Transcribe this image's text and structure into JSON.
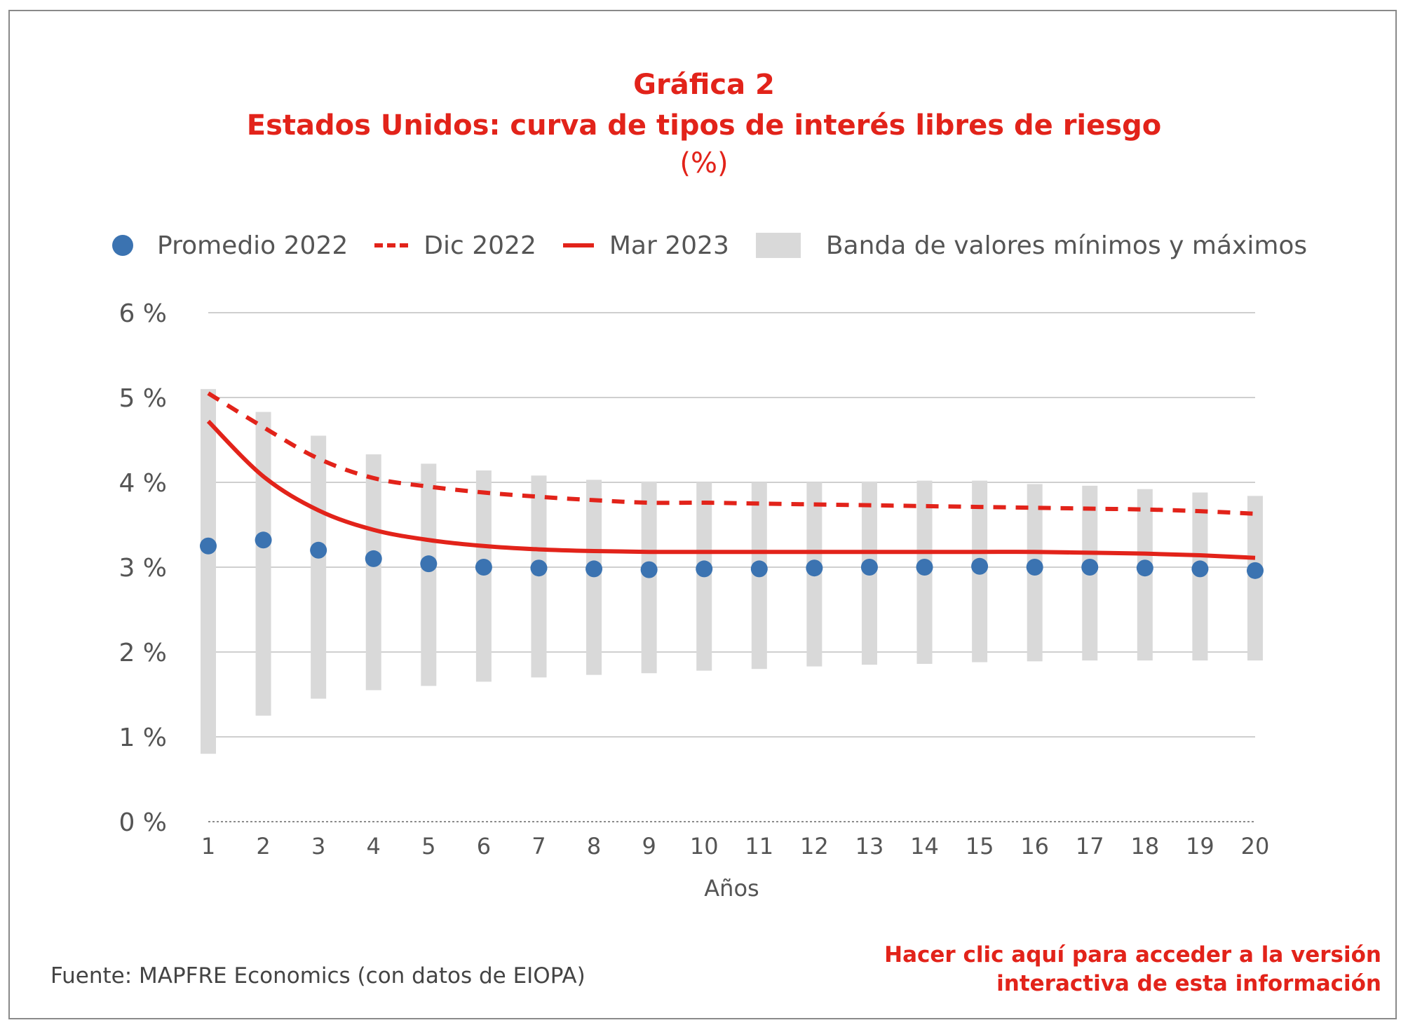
{
  "chart_data": {
    "type": "line",
    "title": "Gráfica 2",
    "subtitle": "Estados Unidos: curva de tipos de interés libres de riesgo",
    "unit_label": "(%)",
    "xlabel": "Años",
    "ylabel": "",
    "x": [
      1,
      2,
      3,
      4,
      5,
      6,
      7,
      8,
      9,
      10,
      11,
      12,
      13,
      14,
      15,
      16,
      17,
      18,
      19,
      20
    ],
    "y_ticks": [
      "0 %",
      "1 %",
      "2 %",
      "3 %",
      "4 %",
      "5 %",
      "6 %"
    ],
    "ylim": [
      0,
      6
    ],
    "grid": true,
    "legend_position": "top",
    "band": {
      "name": "Banda de valores mínimos y máximos",
      "color": "#d9d9d9",
      "min": [
        0.8,
        1.25,
        1.45,
        1.55,
        1.6,
        1.65,
        1.7,
        1.73,
        1.75,
        1.78,
        1.8,
        1.83,
        1.85,
        1.86,
        1.88,
        1.89,
        1.9,
        1.9,
        1.9,
        1.9
      ],
      "max": [
        5.1,
        4.83,
        4.55,
        4.33,
        4.22,
        4.14,
        4.08,
        4.03,
        4.01,
        4.0,
        4.0,
        4.0,
        4.01,
        4.02,
        4.02,
        3.98,
        3.96,
        3.92,
        3.88,
        3.84
      ]
    },
    "series": [
      {
        "name": "Promedio 2022",
        "style": "dots",
        "color": "#3b73b1",
        "values": [
          3.25,
          3.32,
          3.2,
          3.1,
          3.04,
          3.0,
          2.99,
          2.98,
          2.97,
          2.98,
          2.98,
          2.99,
          3.0,
          3.0,
          3.01,
          3.0,
          3.0,
          2.99,
          2.98,
          2.96
        ]
      },
      {
        "name": "Dic 2022",
        "style": "dashed",
        "color": "#e2231a",
        "values": [
          5.05,
          4.65,
          4.28,
          4.05,
          3.95,
          3.88,
          3.83,
          3.79,
          3.76,
          3.76,
          3.75,
          3.74,
          3.73,
          3.72,
          3.71,
          3.7,
          3.69,
          3.68,
          3.66,
          3.63
        ]
      },
      {
        "name": "Mar 2023",
        "style": "solid",
        "color": "#e2231a",
        "values": [
          4.72,
          4.07,
          3.67,
          3.44,
          3.32,
          3.25,
          3.21,
          3.19,
          3.18,
          3.18,
          3.18,
          3.18,
          3.18,
          3.18,
          3.18,
          3.18,
          3.17,
          3.16,
          3.14,
          3.11
        ]
      }
    ]
  },
  "footer": {
    "source": "Fuente: MAPFRE Economics (con datos de EIOPA)",
    "link_line1": "Hacer clic aquí para acceder a la versión",
    "link_line2": "interactiva de esta información"
  }
}
